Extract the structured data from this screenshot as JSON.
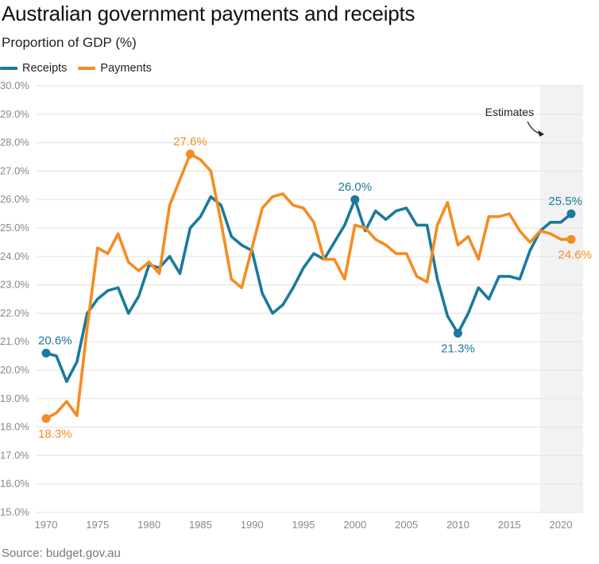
{
  "chart_data": {
    "type": "line",
    "title": "Australian government payments and receipts",
    "subtitle": "Proportion of GDP (%)",
    "xlabel": "",
    "ylabel": "",
    "source": "Source: budget.gov.au",
    "ylim": [
      15,
      30
    ],
    "xlim": [
      1969.2,
      2022.2
    ],
    "yticks": [
      "15.0%",
      "16.0%",
      "17.0%",
      "18.0%",
      "19.0%",
      "20.0%",
      "21.0%",
      "22.0%",
      "23.0%",
      "24.0%",
      "25.0%",
      "26.0%",
      "27.0%",
      "28.0%",
      "29.0%",
      "30.0%"
    ],
    "ytick_values": [
      15,
      16,
      17,
      18,
      19,
      20,
      21,
      22,
      23,
      24,
      25,
      26,
      27,
      28,
      29,
      30
    ],
    "xticks": [
      "1970",
      "1975",
      "1980",
      "1985",
      "1990",
      "1995",
      "2000",
      "2005",
      "2010",
      "2015",
      "2020"
    ],
    "xtick_values": [
      1970,
      1975,
      1980,
      1985,
      1990,
      1995,
      2000,
      2005,
      2010,
      2015,
      2020
    ],
    "grid": true,
    "legend_position": "top-left",
    "x": [
      1970,
      1971,
      1972,
      1973,
      1974,
      1975,
      1976,
      1977,
      1978,
      1979,
      1980,
      1981,
      1982,
      1983,
      1984,
      1985,
      1986,
      1987,
      1988,
      1989,
      1990,
      1991,
      1992,
      1993,
      1994,
      1995,
      1996,
      1997,
      1998,
      1999,
      2000,
      2001,
      2002,
      2003,
      2004,
      2005,
      2006,
      2007,
      2008,
      2009,
      2010,
      2011,
      2012,
      2013,
      2014,
      2015,
      2016,
      2017,
      2018,
      2019,
      2020,
      2021
    ],
    "series": [
      {
        "name": "Receipts",
        "color": "#1a7a9c",
        "values": [
          20.6,
          20.5,
          19.6,
          20.3,
          22.0,
          22.5,
          22.8,
          22.9,
          22.0,
          22.6,
          23.7,
          23.6,
          24.0,
          23.4,
          25.0,
          25.4,
          26.1,
          25.8,
          24.7,
          24.4,
          24.2,
          22.7,
          22.0,
          22.3,
          22.9,
          23.6,
          24.1,
          23.9,
          24.5,
          25.1,
          26.0,
          24.9,
          25.6,
          25.3,
          25.6,
          25.7,
          25.1,
          25.1,
          23.2,
          21.9,
          21.3,
          22.0,
          22.9,
          22.5,
          23.3,
          23.3,
          23.2,
          24.2,
          24.9,
          25.2,
          25.2,
          25.5
        ]
      },
      {
        "name": "Payments",
        "color": "#f68b1f",
        "values": [
          18.3,
          18.5,
          18.9,
          18.4,
          21.5,
          24.3,
          24.1,
          24.8,
          23.8,
          23.5,
          23.8,
          23.4,
          25.8,
          26.7,
          27.6,
          27.4,
          27.0,
          25.2,
          23.2,
          22.9,
          24.3,
          25.7,
          26.1,
          26.2,
          25.8,
          25.7,
          25.2,
          23.9,
          23.9,
          23.2,
          25.1,
          25.0,
          24.6,
          24.4,
          24.1,
          24.1,
          23.3,
          23.1,
          25.1,
          25.9,
          24.4,
          24.7,
          23.9,
          25.4,
          25.4,
          25.5,
          24.9,
          24.5,
          24.9,
          24.8,
          24.6,
          24.6
        ]
      }
    ],
    "annotations": [
      {
        "series": "Receipts",
        "x": 1970,
        "y": 20.6,
        "label": "20.6%",
        "position": "above"
      },
      {
        "series": "Payments",
        "x": 1970,
        "y": 18.3,
        "label": "18.3%",
        "position": "below"
      },
      {
        "series": "Payments",
        "x": 1984,
        "y": 27.6,
        "label": "27.6%",
        "position": "above"
      },
      {
        "series": "Receipts",
        "x": 2000,
        "y": 26.0,
        "label": "26.0%",
        "position": "above"
      },
      {
        "series": "Receipts",
        "x": 2010,
        "y": 21.3,
        "label": "21.3%",
        "position": "below"
      },
      {
        "series": "Receipts",
        "x": 2021,
        "y": 25.5,
        "label": "25.5%",
        "position": "above"
      },
      {
        "series": "Payments",
        "x": 2021,
        "y": 24.6,
        "label": "24.6%",
        "position": "below"
      }
    ],
    "shaded_region": {
      "label": "Estimates",
      "x_start": 2018,
      "x_end": 2022.2,
      "color": "#f2f2f2"
    }
  }
}
